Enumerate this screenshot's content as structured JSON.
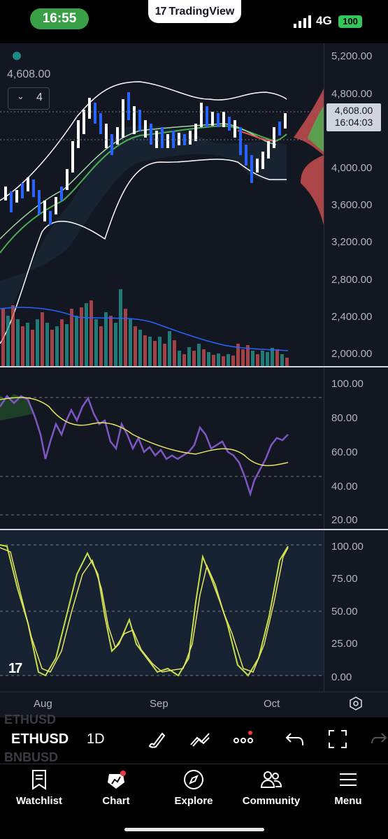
{
  "status_bar": {
    "time": "16:55",
    "app_pill": "TradingView",
    "network": "4G",
    "battery": "100"
  },
  "chart": {
    "price_readout": "4,608.00",
    "indicator_count": "4",
    "current_price": "4,608.00",
    "countdown": "16:04:03",
    "price_axis": [
      "5,200.00",
      "4,800.00",
      "4,000.00",
      "3,600.00",
      "3,200.00",
      "2,800.00",
      "2,400.00",
      "2,000.00"
    ],
    "rsi_axis": [
      "100.00",
      "80.00",
      "60.00",
      "40.00",
      "20.00"
    ],
    "stoch_axis": [
      "100.00",
      "75.00",
      "50.00",
      "25.00",
      "0.00"
    ],
    "time_axis": [
      "Aug",
      "Sep",
      "Oct"
    ],
    "colors": {
      "up": "#ffffff",
      "down": "#2962ff",
      "rsi": "#7e57c2",
      "rsi_ma": "#e8e264",
      "stoch_k": "#c6e04b",
      "stoch_d": "#e8e264",
      "volume_ma": "#2962ff"
    }
  },
  "toolbar": {
    "symbol": "ETHUSD",
    "interval": "1D",
    "ghost_top": "ETHUSD",
    "ghost_bottom": "BNBUSD"
  },
  "tabs": [
    {
      "label": "Watchlist",
      "icon": "bookmark-list-icon"
    },
    {
      "label": "Chart",
      "icon": "chart-candle-icon"
    },
    {
      "label": "Explore",
      "icon": "compass-icon"
    },
    {
      "label": "Community",
      "icon": "people-icon"
    },
    {
      "label": "Menu",
      "icon": "hamburger-icon"
    }
  ]
}
